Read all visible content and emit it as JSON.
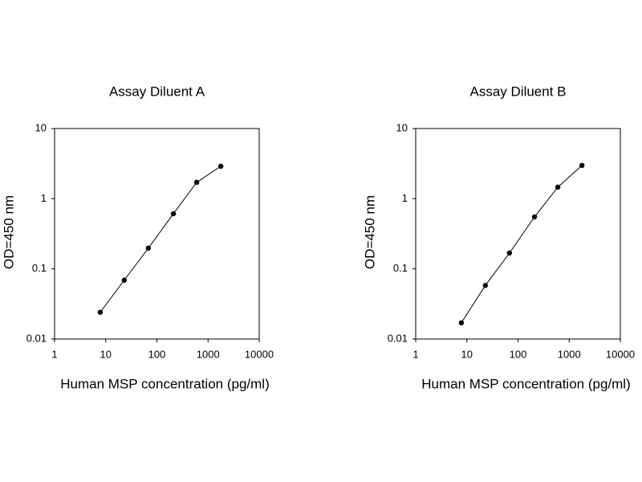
{
  "chart_data": [
    {
      "type": "line",
      "title": "Assay Diluent A",
      "x_label": "Human MSP concentration (pg/ml)",
      "y_label": "OD=450 nm",
      "x": [
        7.8,
        23,
        68,
        210,
        600,
        1780
      ],
      "series": [
        {
          "color": "#000000",
          "values": [
            0.024,
            0.069,
            0.197,
            0.61,
            1.71,
            2.9
          ]
        }
      ],
      "xscale": "log",
      "yscale": "log",
      "xlim": [
        1,
        10000
      ],
      "xticks": [
        1,
        10,
        100,
        1000,
        10000
      ],
      "ylim": [
        0.01,
        10
      ],
      "yticks": [
        0.01,
        0.1,
        1,
        10
      ]
    },
    {
      "type": "line",
      "title": "Assay Diluent B",
      "x_label": "Human MSP concentration (pg/ml)",
      "y_label": "OD=450 nm",
      "x": [
        7.8,
        23,
        68,
        210,
        600,
        1780
      ],
      "series": [
        {
          "color": "#000000",
          "values": [
            0.017,
            0.058,
            0.168,
            0.55,
            1.46,
            2.98
          ]
        }
      ],
      "xscale": "log",
      "yscale": "log",
      "xlim": [
        1,
        10000
      ],
      "xticks": [
        1,
        10,
        100,
        1000,
        10000
      ],
      "ylim": [
        0.01,
        10
      ],
      "yticks": [
        0.01,
        0.1,
        1,
        10
      ]
    }
  ]
}
